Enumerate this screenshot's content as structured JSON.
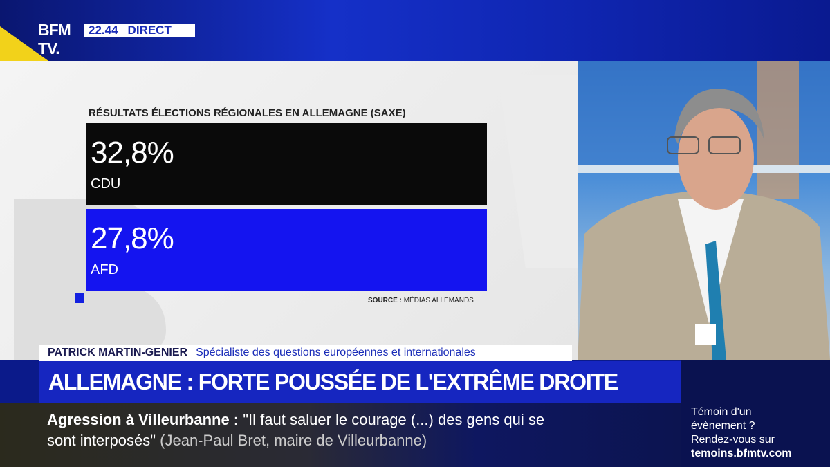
{
  "channel": {
    "logo": "BFM TV.",
    "time": "22.44",
    "live_label": "DIRECT"
  },
  "chart_data": {
    "type": "bar",
    "title": "RÉSULTATS ÉLECTIONS RÉGIONALES EN ALLEMAGNE (SAXE)",
    "categories": [
      "CDU",
      "AFD"
    ],
    "values": [
      32.8,
      27.8
    ],
    "value_labels": [
      "32,8%",
      "27,8%"
    ],
    "colors": [
      "#0a0a0a",
      "#1414f0"
    ],
    "source_label": "SOURCE :",
    "source_text": "MÉDIAS ALLEMANDS"
  },
  "lower_third": {
    "name": "PATRICK MARTIN-GENIER",
    "role": "Spécialiste des questions européennes et internationales"
  },
  "headline": "ALLEMAGNE : FORTE POUSSÉE DE L'EXTRÊME DROITE",
  "ticker": {
    "topic": "Agression à Villeurbanne :",
    "quote_line1": "\"Il faut saluer le courage (...) des gens qui se",
    "quote_line2": "sont interposés\"",
    "attribution": "(Jean-Paul Bret, maire de Villeurbanne)"
  },
  "side_panel": {
    "line1": "Témoin d'un",
    "line2": "évènement ?",
    "line3": "Rendez-vous sur",
    "url": "temoins.bfmtv.com"
  }
}
